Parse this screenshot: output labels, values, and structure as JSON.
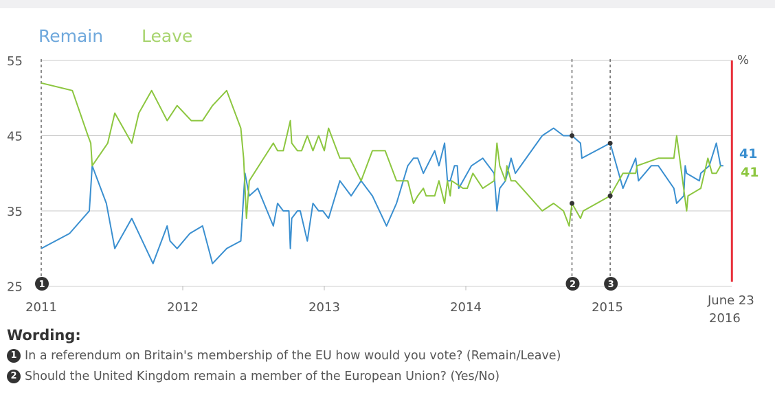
{
  "chart_data": {
    "type": "line",
    "ylim": [
      25,
      55
    ],
    "yticks": [
      "55",
      "45",
      "35",
      "25"
    ],
    "ytick_values": [
      55,
      45,
      35,
      25
    ],
    "yunit": "%",
    "xlim": [
      2011,
      2016.0
    ],
    "xticks": [
      {
        "label": "2011",
        "x": 2011
      },
      {
        "label": "2012",
        "x": 2012
      },
      {
        "label": "2013",
        "x": 2013
      },
      {
        "label": "2014",
        "x": 2014
      },
      {
        "label": "2015",
        "x": 2015
      }
    ],
    "end_marker": {
      "label_line1": "June 23",
      "label_line2": "2016",
      "x": 2015.88,
      "color": "#e8303a"
    },
    "grid": true,
    "legend_position": "top-left",
    "series": [
      {
        "name": "Remain",
        "color": "#3a8fd0",
        "legend_color": "#6fa8dc",
        "end_label": "41",
        "points": [
          [
            2011.0,
            30
          ],
          [
            2011.2,
            32
          ],
          [
            2011.34,
            35
          ],
          [
            2011.36,
            41
          ],
          [
            2011.46,
            36
          ],
          [
            2011.52,
            30
          ],
          [
            2011.64,
            34
          ],
          [
            2011.79,
            28
          ],
          [
            2011.89,
            33
          ],
          [
            2011.91,
            31
          ],
          [
            2011.96,
            30
          ],
          [
            2012.05,
            32
          ],
          [
            2012.14,
            33
          ],
          [
            2012.21,
            28
          ],
          [
            2012.31,
            30
          ],
          [
            2012.41,
            31
          ],
          [
            2012.44,
            40
          ],
          [
            2012.47,
            37
          ],
          [
            2012.53,
            38
          ],
          [
            2012.64,
            33
          ],
          [
            2012.67,
            36
          ],
          [
            2012.71,
            35
          ],
          [
            2012.75,
            35
          ],
          [
            2012.76,
            30
          ],
          [
            2012.77,
            34
          ],
          [
            2012.81,
            35
          ],
          [
            2012.83,
            35
          ],
          [
            2012.88,
            31
          ],
          [
            2012.92,
            36
          ],
          [
            2012.96,
            35
          ],
          [
            2012.99,
            35
          ],
          [
            2013.03,
            34
          ],
          [
            2013.11,
            39
          ],
          [
            2013.19,
            37
          ],
          [
            2013.26,
            39
          ],
          [
            2013.34,
            37
          ],
          [
            2013.44,
            33
          ],
          [
            2013.51,
            36
          ],
          [
            2013.59,
            41
          ],
          [
            2013.63,
            42
          ],
          [
            2013.66,
            42
          ],
          [
            2013.7,
            40
          ],
          [
            2013.78,
            43
          ],
          [
            2013.81,
            41
          ],
          [
            2013.85,
            44
          ],
          [
            2013.87,
            39
          ],
          [
            2013.89,
            39
          ],
          [
            2013.92,
            41
          ],
          [
            2013.94,
            41
          ],
          [
            2013.95,
            38
          ],
          [
            2014.04,
            41
          ],
          [
            2014.12,
            42
          ],
          [
            2014.2,
            40
          ],
          [
            2014.22,
            35
          ],
          [
            2014.24,
            38
          ],
          [
            2014.28,
            39
          ],
          [
            2014.32,
            42
          ],
          [
            2014.35,
            40
          ],
          [
            2014.54,
            45
          ],
          [
            2014.62,
            46
          ],
          [
            2014.69,
            45
          ],
          [
            2014.75,
            45
          ],
          [
            2014.81,
            44
          ],
          [
            2014.82,
            42
          ],
          [
            2015.02,
            44
          ],
          [
            2015.11,
            38
          ],
          [
            2015.2,
            42
          ],
          [
            2015.22,
            39
          ],
          [
            2015.31,
            41
          ],
          [
            2015.36,
            41
          ],
          [
            2015.47,
            38
          ],
          [
            2015.49,
            36
          ],
          [
            2015.54,
            37
          ],
          [
            2015.55,
            41
          ],
          [
            2015.56,
            40
          ],
          [
            2015.65,
            39
          ],
          [
            2015.66,
            40
          ],
          [
            2015.72,
            41
          ],
          [
            2015.77,
            44
          ],
          [
            2015.8,
            41
          ],
          [
            2015.82,
            41
          ]
        ]
      },
      {
        "name": "Leave",
        "color": "#8cc63f",
        "legend_color": "#a8d46f",
        "end_label": "41",
        "points": [
          [
            2011.0,
            52
          ],
          [
            2011.22,
            51
          ],
          [
            2011.33,
            45
          ],
          [
            2011.35,
            44
          ],
          [
            2011.36,
            41
          ],
          [
            2011.47,
            44
          ],
          [
            2011.52,
            48
          ],
          [
            2011.64,
            44
          ],
          [
            2011.69,
            48
          ],
          [
            2011.78,
            51
          ],
          [
            2011.89,
            47
          ],
          [
            2011.96,
            49
          ],
          [
            2012.06,
            47
          ],
          [
            2012.14,
            47
          ],
          [
            2012.21,
            49
          ],
          [
            2012.31,
            51
          ],
          [
            2012.41,
            46
          ],
          [
            2012.43,
            42
          ],
          [
            2012.45,
            34
          ],
          [
            2012.47,
            39
          ],
          [
            2012.64,
            44
          ],
          [
            2012.67,
            43
          ],
          [
            2012.71,
            43
          ],
          [
            2012.76,
            47
          ],
          [
            2012.77,
            44
          ],
          [
            2012.81,
            43
          ],
          [
            2012.84,
            43
          ],
          [
            2012.88,
            45
          ],
          [
            2012.92,
            43
          ],
          [
            2012.96,
            45
          ],
          [
            2013.0,
            43
          ],
          [
            2013.03,
            46
          ],
          [
            2013.11,
            42
          ],
          [
            2013.18,
            42
          ],
          [
            2013.26,
            39
          ],
          [
            2013.34,
            43
          ],
          [
            2013.43,
            43
          ],
          [
            2013.51,
            39
          ],
          [
            2013.59,
            39
          ],
          [
            2013.63,
            36
          ],
          [
            2013.66,
            37
          ],
          [
            2013.7,
            38
          ],
          [
            2013.72,
            37
          ],
          [
            2013.78,
            37
          ],
          [
            2013.81,
            39
          ],
          [
            2013.85,
            36
          ],
          [
            2013.87,
            39
          ],
          [
            2013.89,
            37
          ],
          [
            2013.9,
            39
          ],
          [
            2013.98,
            38
          ],
          [
            2014.01,
            38
          ],
          [
            2014.05,
            40
          ],
          [
            2014.12,
            38
          ],
          [
            2014.2,
            39
          ],
          [
            2014.22,
            44
          ],
          [
            2014.24,
            41
          ],
          [
            2014.28,
            39
          ],
          [
            2014.29,
            41
          ],
          [
            2014.32,
            39
          ],
          [
            2014.35,
            39
          ],
          [
            2014.54,
            35
          ],
          [
            2014.62,
            36
          ],
          [
            2014.69,
            35
          ],
          [
            2014.73,
            33
          ],
          [
            2014.75,
            36
          ],
          [
            2014.81,
            34
          ],
          [
            2014.83,
            35
          ],
          [
            2015.02,
            37
          ],
          [
            2015.11,
            40
          ],
          [
            2015.2,
            40
          ],
          [
            2015.21,
            41
          ],
          [
            2015.36,
            42
          ],
          [
            2015.47,
            42
          ],
          [
            2015.49,
            45
          ],
          [
            2015.56,
            35
          ],
          [
            2015.57,
            37
          ],
          [
            2015.66,
            38
          ],
          [
            2015.71,
            42
          ],
          [
            2015.74,
            40
          ],
          [
            2015.77,
            40
          ],
          [
            2015.8,
            41
          ]
        ]
      }
    ],
    "annotations": [
      {
        "number": "1",
        "x": 2011.0,
        "dots": []
      },
      {
        "number": "2",
        "x": 2014.75,
        "dots": [
          45,
          36
        ]
      },
      {
        "number": "3",
        "x": 2015.02,
        "dots": [
          44,
          37
        ]
      }
    ]
  },
  "wording": {
    "title": "Wording:",
    "items": [
      {
        "number": "1",
        "text": "In a referendum on Britain's membership of the EU how would you vote? (Remain/Leave)"
      },
      {
        "number": "2",
        "text": "Should the United Kingdom remain a member of the European Union? (Yes/No)"
      }
    ]
  }
}
